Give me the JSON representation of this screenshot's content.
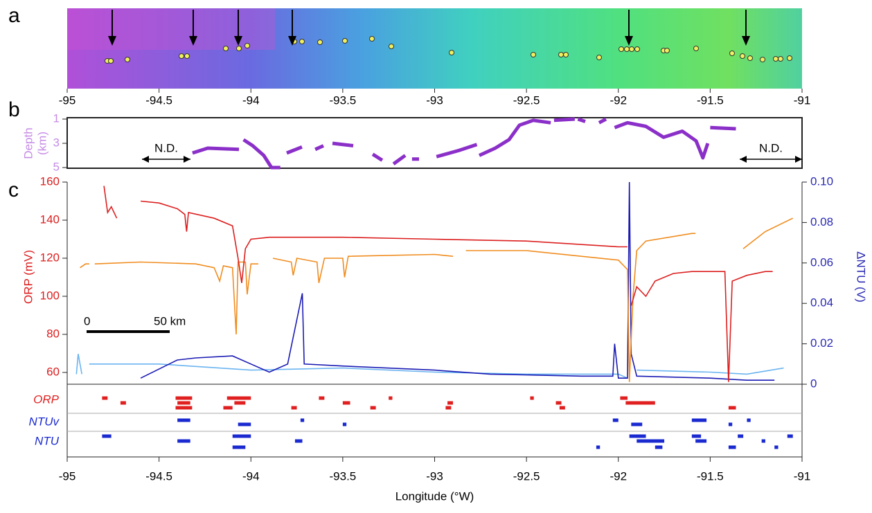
{
  "panel_labels": [
    "a",
    "b",
    "c"
  ],
  "chart_data": [
    {
      "type": "map",
      "xlim": [
        -95,
        -91
      ],
      "xticks": [
        -95,
        -94.5,
        -94,
        -93.5,
        -93,
        -92.5,
        -92,
        -91.5,
        -91
      ]
    },
    {
      "type": "line",
      "ylabel": [
        "Depth",
        "(km)"
      ],
      "xlim": [
        -95,
        -91
      ],
      "ylim": [
        5,
        1
      ],
      "yticks": [
        1,
        3,
        5
      ],
      "annotations": [
        "N.D.",
        "N.D."
      ],
      "series": [
        {
          "color": "#8b2fc9",
          "x": [
            -94.318,
            -94.235,
            -94.065,
            null,
            -94.04,
            -93.99,
            -93.93,
            -93.888,
            -93.84,
            null,
            -93.805,
            -93.722,
            null,
            -93.65,
            -93.605,
            null,
            -93.556,
            -93.443,
            null,
            -93.337,
            -93.285,
            null,
            -93.224,
            -93.16,
            null,
            -93.123,
            -93.085,
            null,
            -92.99,
            -92.87,
            -92.77,
            null,
            -92.757,
            -92.67,
            -92.595,
            -92.538,
            -92.463,
            -92.368,
            null,
            -92.35,
            -92.237,
            null,
            -92.22,
            -92.18,
            null,
            -92.105,
            -92.067,
            null,
            -92.02,
            -91.95,
            -91.85,
            -91.754,
            -91.652,
            -91.577,
            -91.558,
            -91.54,
            -91.513,
            null,
            -91.5,
            -91.36
          ],
          "values": [
            3.8,
            3.4,
            3.5,
            null,
            2.7,
            3.2,
            4.0,
            5,
            5,
            null,
            3.8,
            3.3,
            null,
            3.5,
            3.2,
            null,
            3.0,
            3.2,
            null,
            3.9,
            4.4,
            null,
            4.7,
            4.0,
            null,
            4.3,
            4.3,
            null,
            4.1,
            3.6,
            3.1,
            null,
            4.0,
            3.4,
            2.7,
            1.5,
            1.1,
            1.3,
            null,
            1.1,
            1.0,
            null,
            1.0,
            1.2,
            null,
            1.3,
            1.0,
            null,
            1.7,
            1.3,
            1.6,
            2.5,
            2.0,
            2.8,
            3.5,
            4.2,
            3.0,
            null,
            1.7,
            1.8
          ]
        }
      ]
    },
    {
      "type": "line",
      "ylabel": "ORP (mV)",
      "y2label": "ΔNTU (V)",
      "xlim": [
        -95,
        -91
      ],
      "ylim": [
        53.8,
        160
      ],
      "yticks": [
        60,
        80,
        100,
        120,
        140,
        160
      ],
      "y2lim": [
        0,
        0.1
      ],
      "y2ticks": [
        0,
        0.02,
        0.04,
        0.06,
        0.08,
        {
          "value": 0.1,
          "label": "0.10"
        }
      ],
      "annotations": [
        "0",
        "50 km"
      ],
      "series": [
        {
          "color": "#6ab4f0",
          "axis": "y2",
          "x": [
            -94.95,
            -94.94,
            -94.92,
            null,
            -94.88,
            -94.5,
            -94.0,
            -93.5,
            -93.0,
            -92.5,
            -92.0,
            -91.95,
            null,
            -91.9,
            -91.5,
            -91.3,
            -91.1
          ],
          "values": [
            0.005,
            0.015,
            0.005,
            null,
            0.01,
            0.01,
            0.007,
            0.008,
            0.006,
            0.005,
            0.005,
            0.003,
            null,
            0.007,
            0.006,
            0.005,
            0.008
          ]
        },
        {
          "color": "#1a1ab4",
          "axis": "y2",
          "x": [
            -94.6,
            -94.4,
            -94.3,
            -94.1,
            -94.0,
            -93.9,
            -93.8,
            -93.72,
            -93.71,
            -93.5,
            -93.0,
            -92.7,
            -92.2,
            -92.03,
            -92.02,
            -92.0,
            -91.95,
            -91.94,
            -91.93,
            -91.9,
            -91.5,
            -91.3,
            -91.15
          ],
          "values": [
            0.003,
            0.012,
            0.013,
            0.014,
            0.01,
            0.006,
            0.01,
            0.045,
            0.01,
            0.009,
            0.007,
            0.005,
            0.004,
            0.004,
            0.02,
            0.003,
            0.003,
            0.1,
            0.015,
            0.004,
            0.003,
            0.002,
            0.002
          ]
        },
        {
          "color": "#f08c1e",
          "x": [
            -94.93,
            -94.9,
            -94.88,
            null,
            -94.85,
            -94.6,
            -94.3,
            -94.2,
            -94.17,
            -94.15,
            -94.1,
            -94.08,
            -94.07,
            -94.03,
            -94.02,
            -94.0,
            -93.96,
            null,
            -93.88,
            -93.78,
            -93.77,
            -93.75,
            -93.64,
            -93.63,
            -93.6,
            -93.5,
            -93.49,
            -93.47,
            -93.0,
            -92.9,
            null,
            -92.83,
            -92.5,
            -92.0,
            -91.95,
            -91.94,
            -91.92,
            -91.9,
            -91.85,
            -91.6,
            -91.58,
            null,
            -91.32,
            -91.2,
            -91.05
          ],
          "values": [
            115,
            117,
            117,
            null,
            117,
            118,
            117,
            115,
            108,
            116,
            115,
            80,
            118,
            118,
            101,
            117,
            117,
            null,
            120,
            118,
            111,
            120,
            118,
            107,
            120,
            120,
            110,
            121,
            122,
            121,
            null,
            124,
            124,
            119,
            114,
            55,
            100,
            124,
            129,
            133,
            133,
            null,
            125,
            134,
            141
          ]
        },
        {
          "color": "#dc1e1e",
          "x": [
            -94.8,
            -94.78,
            -94.76,
            -94.73,
            null,
            -94.6,
            -94.5,
            -94.4,
            -94.36,
            -94.35,
            -94.34,
            -94.2,
            -94.1,
            -94.07,
            -94.05,
            -94.03,
            -94.0,
            -93.9,
            -93.5,
            -93.0,
            -92.5,
            -92.0,
            -91.95,
            null,
            -91.93,
            -91.9,
            -91.85,
            -91.8,
            -91.7,
            -91.6,
            -91.42,
            -91.4,
            -91.38,
            -91.3,
            -91.2,
            -91.16
          ],
          "values": [
            158,
            144,
            147,
            141,
            null,
            150,
            149,
            146,
            143,
            134,
            144,
            141,
            137,
            120,
            107,
            125,
            130,
            131,
            131,
            130,
            129,
            126,
            126,
            null,
            95,
            105,
            100,
            108,
            112,
            113,
            113,
            55,
            108,
            111,
            113,
            113
          ]
        }
      ]
    },
    {
      "type": "events",
      "xlim": [
        -95,
        -91
      ],
      "xticks": [
        -95,
        -94.5,
        -94,
        -93.5,
        -93,
        -92.5,
        -92,
        -91.5,
        -91
      ],
      "xlabel": "Longitude (°W)",
      "rows": [
        {
          "name": "ORP",
          "color": "#e02020",
          "segments": [
            [
              -94.81,
              -94.78
            ],
            [
              -94.71,
              -94.68
            ],
            [
              -94.41,
              -94.32
            ],
            [
              -94.41,
              -94.32
            ],
            [
              -94.4,
              -94.33
            ],
            [
              -94.15,
              -94.1
            ],
            [
              -94.13,
              -94.0
            ],
            [
              -94.09,
              -94.03
            ],
            [
              -93.78,
              -93.75
            ],
            [
              -93.63,
              -93.6
            ],
            [
              -93.5,
              -93.46
            ],
            [
              -93.35,
              -93.32
            ],
            [
              -93.25,
              -93.23
            ],
            [
              -92.93,
              -92.9
            ],
            [
              -92.94,
              -92.91
            ],
            [
              -92.48,
              -92.46
            ],
            [
              -92.34,
              -92.31
            ],
            [
              -92.32,
              -92.29
            ],
            [
              -91.99,
              -91.95
            ],
            [
              -91.96,
              -91.8
            ],
            [
              -91.4,
              -91.36
            ]
          ]
        },
        {
          "name": "NTUv",
          "color": "#1a2ad0",
          "segments": [
            [
              -94.4,
              -94.33
            ],
            [
              -94.07,
              -94.0
            ],
            [
              -93.73,
              -93.71
            ],
            [
              -93.5,
              -93.48
            ],
            [
              -92.03,
              -92.0
            ],
            [
              -91.93,
              -91.87
            ],
            [
              -91.6,
              -91.52
            ],
            [
              -91.4,
              -91.38
            ],
            [
              -91.3,
              -91.28
            ]
          ]
        },
        {
          "name": "NTU",
          "color": "#1a2ad0",
          "segments": [
            [
              -94.81,
              -94.76
            ],
            [
              -94.4,
              -94.33
            ],
            [
              -94.1,
              -94.03
            ],
            [
              -94.1,
              -94.0
            ],
            [
              -93.76,
              -93.72
            ],
            [
              -92.12,
              -92.1
            ],
            [
              -91.94,
              -91.85
            ],
            [
              -91.9,
              -91.75
            ],
            [
              -91.8,
              -91.76
            ],
            [
              -91.6,
              -91.55
            ],
            [
              -91.58,
              -91.52
            ],
            [
              -91.4,
              -91.36
            ],
            [
              -91.35,
              -91.32
            ],
            [
              -91.22,
              -91.2
            ],
            [
              -91.15,
              -91.13
            ],
            [
              -91.08,
              -91.05
            ]
          ]
        }
      ]
    }
  ]
}
